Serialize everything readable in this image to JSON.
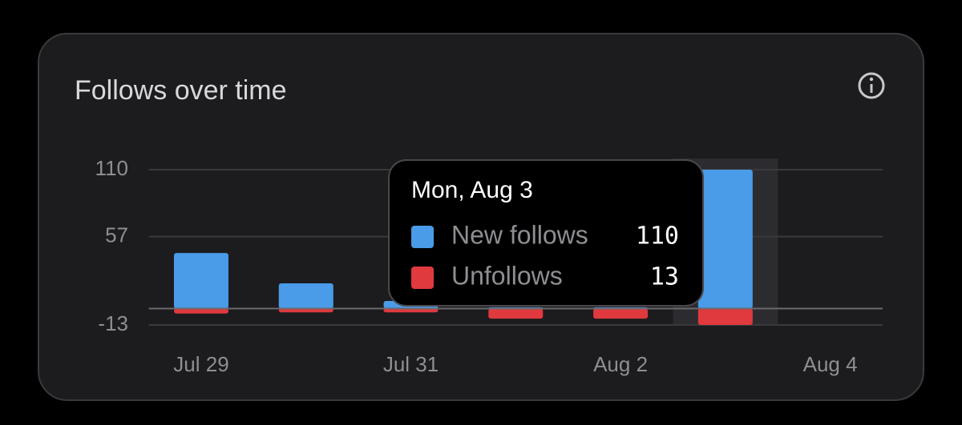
{
  "chart_data": {
    "type": "diverging-bar",
    "title": "Follows over time",
    "categories": [
      "Jul 29",
      null,
      "Jul 31",
      null,
      "Aug 2",
      null,
      "Aug 4"
    ],
    "series": [
      {
        "name": "New follows",
        "color": "#4a9be8",
        "direction": "up",
        "values": [
          44,
          20,
          6,
          1,
          1,
          110,
          null
        ]
      },
      {
        "name": "Unfollows",
        "color": "#e0393e",
        "direction": "down",
        "values": [
          4,
          3,
          3,
          8,
          8,
          13,
          null
        ]
      }
    ],
    "ylim": [
      -13,
      110
    ],
    "yticks": [
      110,
      57,
      -13
    ],
    "grid": true,
    "tooltip": {
      "title": "Mon, Aug 3"
    }
  }
}
